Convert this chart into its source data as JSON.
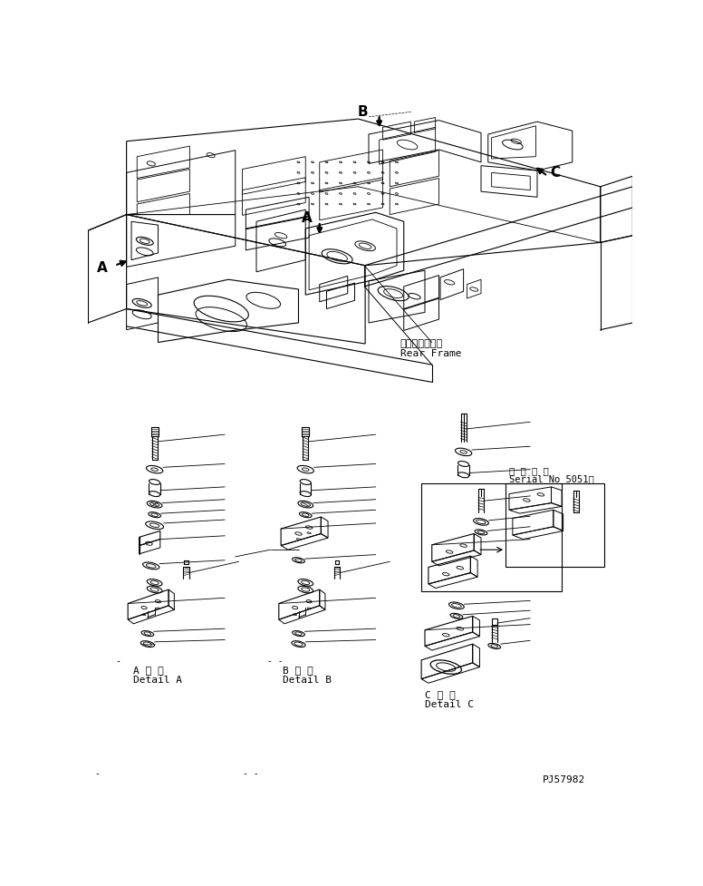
{
  "background_color": "#ffffff",
  "line_color": "#000000",
  "rear_frame_label": [
    "リャーフレーム",
    "Rear Frame"
  ],
  "serial_label": [
    "適 用 号 機",
    "Serial No 5051～"
  ],
  "detail_labels": [
    [
      "A 詳 細",
      "Detail A"
    ],
    [
      "B 詳 細",
      "Detail B"
    ],
    [
      "C 詳 細",
      "Detail C"
    ]
  ],
  "part_number": "PJ57982",
  "mono_font": "monospace",
  "fs": 7,
  "fm": 8
}
